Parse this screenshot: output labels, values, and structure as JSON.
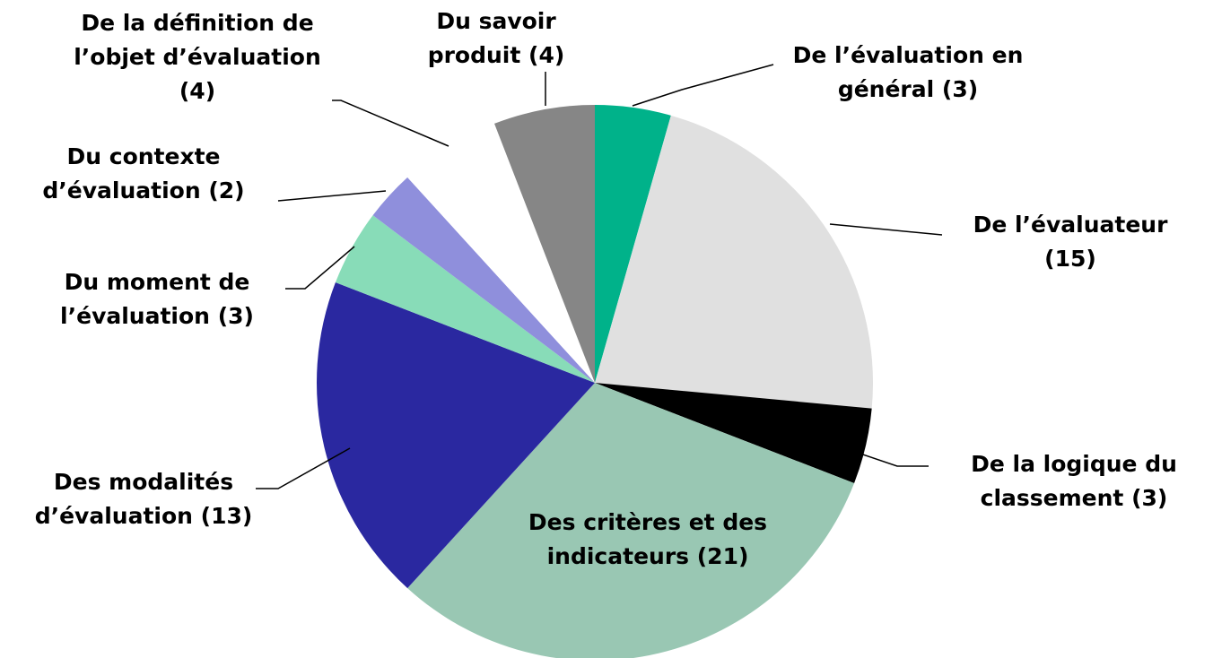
{
  "chart_data": {
    "type": "pie",
    "categories": [
      "De l’évaluation en général",
      "De l’évaluateur",
      "De la logique du classement",
      "Des critères et des indicateurs",
      "Des modalités d’évaluation",
      "Du moment de l’évaluation",
      "Du contexte d’évaluation",
      "De la définition de l’objet d’évaluation",
      "Du savoir produit"
    ],
    "values": [
      3,
      15,
      3,
      21,
      13,
      3,
      2,
      4,
      4
    ],
    "value_labels": [
      "(3)",
      "(15)",
      "(3)",
      "(21)",
      "(13)",
      "(3)",
      "(2)",
      "(4)",
      "(4)"
    ],
    "colors": [
      "#00b28a",
      "#e0e0e0",
      "#000000",
      "#99c7b3",
      "#2a28a0",
      "#88dcb8",
      "#8f8fdc",
      "#ffffff",
      "#868686"
    ]
  }
}
